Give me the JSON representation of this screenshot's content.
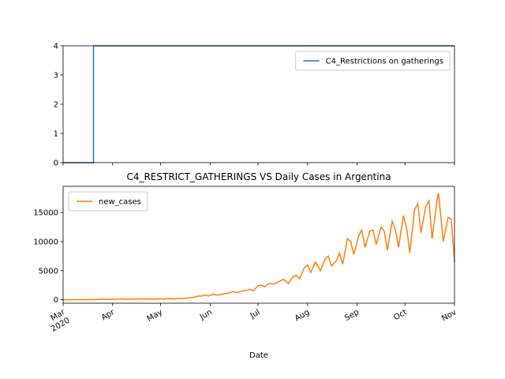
{
  "chart_data": [
    {
      "type": "line",
      "title": "",
      "xlabel": "",
      "ylabel": "",
      "ylim": [
        0,
        4
      ],
      "yticks": [
        0,
        1,
        2,
        3,
        4
      ],
      "xlim": [
        "2020-03-01",
        "2020-11-01"
      ],
      "legend": "top-right",
      "series": [
        {
          "name": "C4_Restrictions on gatherings",
          "color": "#1f77b4",
          "points": [
            [
              "2020-03-01",
              0
            ],
            [
              "2020-03-20",
              0
            ],
            [
              "2020-03-20",
              4
            ],
            [
              "2020-11-01",
              4
            ]
          ]
        }
      ]
    },
    {
      "type": "line",
      "title": "C4_RESTRICT_GATHERINGS VS Daily Cases in Argentina",
      "xlabel": "Date",
      "ylabel": "",
      "ylim": [
        -600,
        19500
      ],
      "yticks": [
        0,
        5000,
        10000,
        15000
      ],
      "yticklabels": [
        "0",
        "5000",
        "10000",
        "15000"
      ],
      "xlim": [
        "2020-03-01",
        "2020-11-01"
      ],
      "xticks": [
        "2020-03-01",
        "2020-04-01",
        "2020-05-01",
        "2020-06-01",
        "2020-07-01",
        "2020-08-01",
        "2020-09-01",
        "2020-10-01",
        "2020-11-01"
      ],
      "xticklabels": [
        [
          "Mar",
          "2020"
        ],
        [
          "Apr",
          ""
        ],
        [
          "May",
          ""
        ],
        [
          "Jun",
          ""
        ],
        [
          "Jul",
          ""
        ],
        [
          "Aug",
          ""
        ],
        [
          "Sep",
          ""
        ],
        [
          "Oct",
          ""
        ],
        [
          "Nov",
          ""
        ]
      ],
      "legend": "top-left",
      "series": [
        {
          "name": "new_cases",
          "color": "#ff7f0e",
          "points": [
            [
              "2020-03-01",
              0
            ],
            [
              "2020-03-10",
              5
            ],
            [
              "2020-03-15",
              10
            ],
            [
              "2020-03-20",
              30
            ],
            [
              "2020-03-23",
              60
            ],
            [
              "2020-03-26",
              90
            ],
            [
              "2020-03-29",
              40
            ],
            [
              "2020-04-01",
              120
            ],
            [
              "2020-04-03",
              60
            ],
            [
              "2020-04-06",
              150
            ],
            [
              "2020-04-09",
              80
            ],
            [
              "2020-04-12",
              130
            ],
            [
              "2020-04-15",
              90
            ],
            [
              "2020-04-18",
              160
            ],
            [
              "2020-04-21",
              100
            ],
            [
              "2020-04-24",
              150
            ],
            [
              "2020-04-27",
              120
            ],
            [
              "2020-04-30",
              140
            ],
            [
              "2020-05-03",
              110
            ],
            [
              "2020-05-06",
              220
            ],
            [
              "2020-05-09",
              150
            ],
            [
              "2020-05-12",
              230
            ],
            [
              "2020-05-15",
              200
            ],
            [
              "2020-05-18",
              300
            ],
            [
              "2020-05-21",
              350
            ],
            [
              "2020-05-24",
              600
            ],
            [
              "2020-05-27",
              650
            ],
            [
              "2020-05-29",
              800
            ],
            [
              "2020-05-31",
              650
            ],
            [
              "2020-06-03",
              950
            ],
            [
              "2020-06-06",
              800
            ],
            [
              "2020-06-09",
              1000
            ],
            [
              "2020-06-12",
              1100
            ],
            [
              "2020-06-15",
              1400
            ],
            [
              "2020-06-18",
              1200
            ],
            [
              "2020-06-21",
              1500
            ],
            [
              "2020-06-24",
              1600
            ],
            [
              "2020-06-26",
              1800
            ],
            [
              "2020-06-28",
              1500
            ],
            [
              "2020-07-01",
              2400
            ],
            [
              "2020-07-03",
              2500
            ],
            [
              "2020-07-05",
              2200
            ],
            [
              "2020-07-08",
              2800
            ],
            [
              "2020-07-11",
              2700
            ],
            [
              "2020-07-14",
              3100
            ],
            [
              "2020-07-17",
              3500
            ],
            [
              "2020-07-20",
              2800
            ],
            [
              "2020-07-23",
              4000
            ],
            [
              "2020-07-25",
              4200
            ],
            [
              "2020-07-27",
              3600
            ],
            [
              "2020-07-30",
              5500
            ],
            [
              "2020-08-01",
              6000
            ],
            [
              "2020-08-03",
              4700
            ],
            [
              "2020-08-06",
              6500
            ],
            [
              "2020-08-09",
              5000
            ],
            [
              "2020-08-12",
              7000
            ],
            [
              "2020-08-14",
              7500
            ],
            [
              "2020-08-16",
              5800
            ],
            [
              "2020-08-19",
              6700
            ],
            [
              "2020-08-21",
              8000
            ],
            [
              "2020-08-23",
              6100
            ],
            [
              "2020-08-26",
              10500
            ],
            [
              "2020-08-28",
              10000
            ],
            [
              "2020-08-30",
              7800
            ],
            [
              "2020-09-02",
              11000
            ],
            [
              "2020-09-04",
              12000
            ],
            [
              "2020-09-06",
              9000
            ],
            [
              "2020-09-09",
              11800
            ],
            [
              "2020-09-11",
              12000
            ],
            [
              "2020-09-13",
              9500
            ],
            [
              "2020-09-16",
              12500
            ],
            [
              "2020-09-18",
              11800
            ],
            [
              "2020-09-20",
              8500
            ],
            [
              "2020-09-23",
              13500
            ],
            [
              "2020-09-25",
              12000
            ],
            [
              "2020-09-27",
              9000
            ],
            [
              "2020-09-30",
              14500
            ],
            [
              "2020-10-02",
              12500
            ],
            [
              "2020-10-04",
              8000
            ],
            [
              "2020-10-07",
              15500
            ],
            [
              "2020-10-09",
              16500
            ],
            [
              "2020-10-11",
              11500
            ],
            [
              "2020-10-14",
              16000
            ],
            [
              "2020-10-16",
              17000
            ],
            [
              "2020-10-18",
              10500
            ],
            [
              "2020-10-21",
              17000
            ],
            [
              "2020-10-22",
              18300
            ],
            [
              "2020-10-25",
              10000
            ],
            [
              "2020-10-28",
              14200
            ],
            [
              "2020-10-30",
              13800
            ],
            [
              "2020-11-01",
              6500
            ]
          ]
        }
      ]
    }
  ]
}
